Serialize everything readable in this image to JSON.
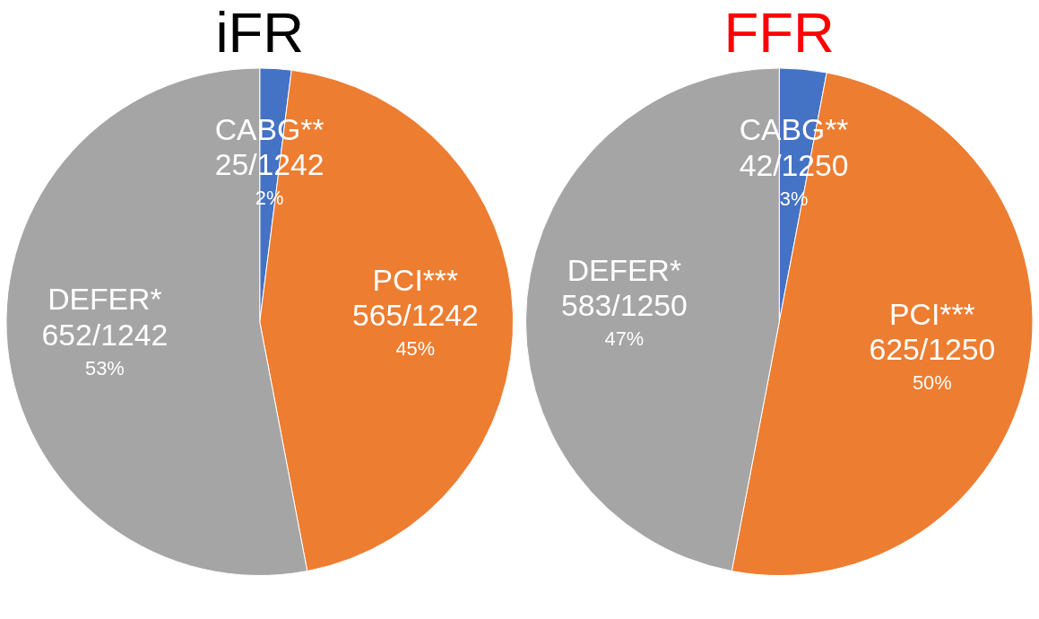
{
  "chart_data": [
    {
      "type": "pie",
      "title": "iFR",
      "categories": [
        "CABG**",
        "PCI***",
        "DEFER*"
      ],
      "values": [
        2,
        45,
        53
      ],
      "colors": [
        "#4472c4",
        "#ed7d31",
        "#a5a5a5"
      ],
      "value_labels": [
        "25/1242\n2%",
        "565/1242\n45%",
        "652/1242\n53%"
      ]
    },
    {
      "type": "pie",
      "title": "FFR",
      "categories": [
        "CABG**",
        "PCI***",
        "DEFER*"
      ],
      "values": [
        3,
        50,
        47
      ],
      "colors": [
        "#4472c4",
        "#ed7d31",
        "#a5a5a5"
      ],
      "value_labels": [
        "42/1250\n3%",
        "625/1250\n50%",
        "583/1250\n47%"
      ]
    }
  ]
}
